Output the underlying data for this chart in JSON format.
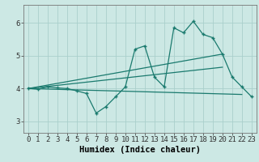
{
  "bg_color": "#cce8e4",
  "line_color": "#1a7a6e",
  "grid_color": "#aacfcc",
  "xlabel": "Humidex (Indice chaleur)",
  "xlabel_fontsize": 7.5,
  "tick_fontsize": 6.5,
  "yticks": [
    3,
    4,
    5,
    6
  ],
  "ylim": [
    2.65,
    6.55
  ],
  "xlim": [
    -0.5,
    23.5
  ],
  "xtick_labels": [
    "0",
    "1",
    "2",
    "3",
    "4",
    "5",
    "6",
    "7",
    "8",
    "9",
    "10",
    "11",
    "12",
    "13",
    "14",
    "15",
    "16",
    "17",
    "18",
    "19",
    "20",
    "21",
    "22",
    "23"
  ],
  "line1_x": [
    0,
    1,
    2,
    3,
    4,
    5,
    6,
    7,
    8,
    9,
    10,
    11,
    12,
    13,
    14,
    15,
    16,
    17,
    18,
    19,
    20,
    21,
    22,
    23
  ],
  "line1_y": [
    4.0,
    3.98,
    4.05,
    4.02,
    4.0,
    3.93,
    3.85,
    3.25,
    3.45,
    3.75,
    4.05,
    5.2,
    5.3,
    4.35,
    4.05,
    5.85,
    5.7,
    6.05,
    5.65,
    5.55,
    5.05,
    4.35,
    4.05,
    3.75
  ],
  "line2_x": [
    0,
    20
  ],
  "line2_y": [
    4.0,
    5.05
  ],
  "line3_x": [
    0,
    20
  ],
  "line3_y": [
    4.0,
    4.65
  ],
  "line4_x": [
    0,
    22
  ],
  "line4_y": [
    4.0,
    3.82
  ]
}
